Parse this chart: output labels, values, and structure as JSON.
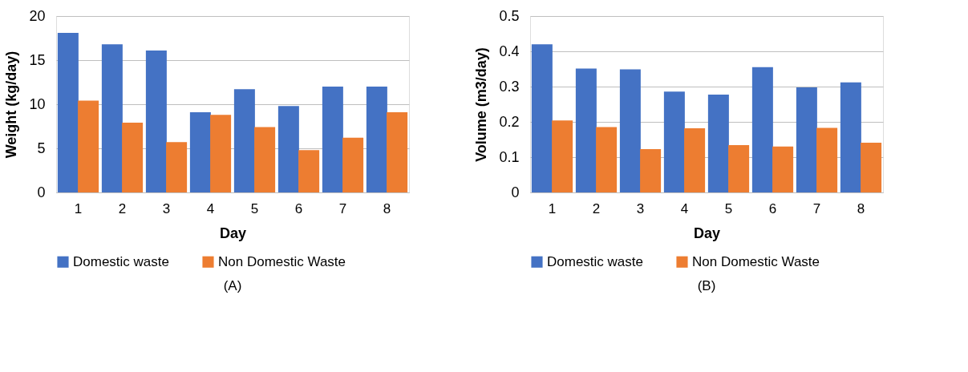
{
  "chart_data": [
    {
      "type": "bar",
      "xlabel": "Day",
      "ylabel": "Weight (kg/day)",
      "categories": [
        "1",
        "2",
        "3",
        "4",
        "5",
        "6",
        "7",
        "8"
      ],
      "series": [
        {
          "name": "Domestic waste",
          "color": "#4472c4",
          "values": [
            18.1,
            16.8,
            16.1,
            9.1,
            11.7,
            9.8,
            12.0,
            12.0
          ]
        },
        {
          "name": "Non Domestic Waste",
          "color": "#ed7d31",
          "values": [
            10.4,
            7.9,
            5.7,
            8.8,
            7.4,
            4.8,
            6.2,
            9.1
          ]
        }
      ],
      "ylim": [
        0,
        20
      ],
      "yticks": [
        0,
        5,
        10,
        15,
        20
      ],
      "grid": "y",
      "legend": "bottom",
      "annotations": [
        "(A)"
      ]
    },
    {
      "type": "bar",
      "xlabel": "Day",
      "ylabel": "Volume (m3/day)",
      "categories": [
        "1",
        "2",
        "3",
        "4",
        "5",
        "6",
        "7",
        "8"
      ],
      "series": [
        {
          "name": "Domestic waste",
          "color": "#4472c4",
          "values": [
            0.42,
            0.351,
            0.349,
            0.286,
            0.277,
            0.355,
            0.298,
            0.312
          ]
        },
        {
          "name": "Non Domestic Waste",
          "color": "#ed7d31",
          "values": [
            0.204,
            0.185,
            0.123,
            0.182,
            0.134,
            0.13,
            0.183,
            0.141
          ]
        }
      ],
      "ylim": [
        0,
        0.5
      ],
      "yticks": [
        0,
        0.1,
        0.2,
        0.3,
        0.4,
        0.5
      ],
      "grid": "y",
      "legend": "bottom",
      "annotations": [
        "(B)"
      ]
    }
  ]
}
